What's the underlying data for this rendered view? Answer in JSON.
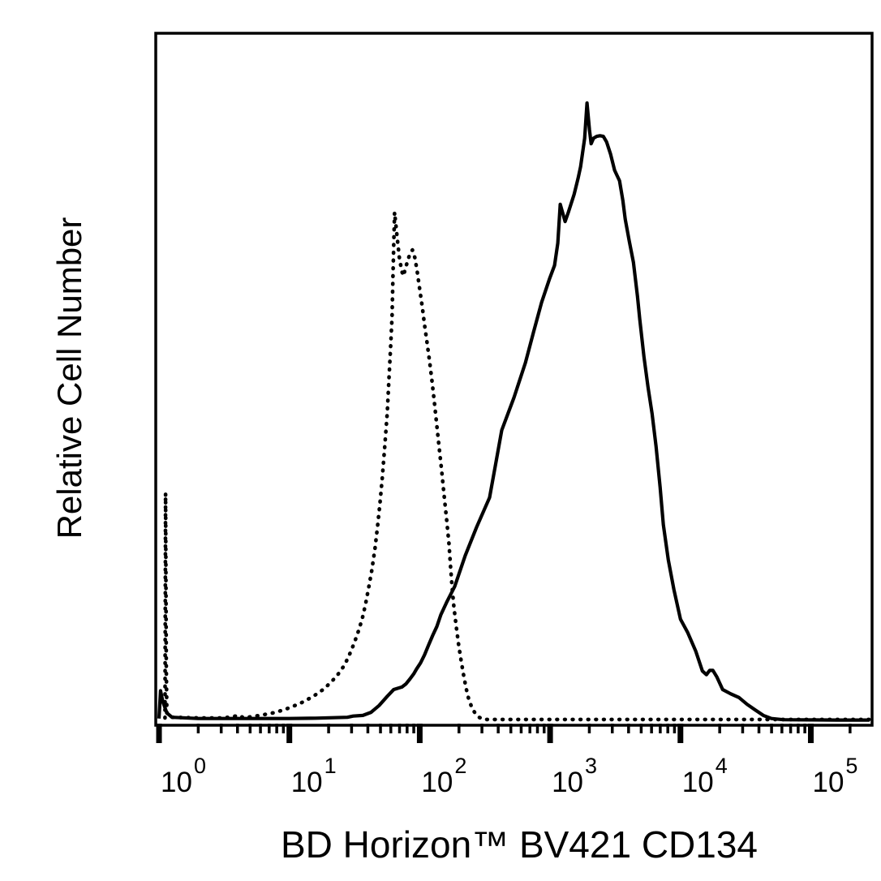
{
  "figure": {
    "background_color": "#ffffff",
    "ink_color": "#000000"
  },
  "chart_data": {
    "type": "line",
    "variant": "flow-cytometry-histogram-overlay",
    "title": "",
    "xlabel": "BD Horizon™ BV421 CD134",
    "ylabel": "Relative Cell Number",
    "grid": false,
    "legend": "none",
    "x_axis": {
      "scale": "log10",
      "tick_base": 10,
      "tick_exponents": [
        0,
        1,
        2,
        3,
        4,
        5
      ],
      "tick_labels": [
        "10⁰",
        "10¹",
        "10²",
        "10³",
        "10⁴",
        "10⁵"
      ],
      "minor_ticks": "log sub-decades (2-9) per decade",
      "range_log10": [
        -0.025,
        5.47
      ]
    },
    "y_axis": {
      "ticks": "none",
      "range_relative": [
        0,
        105
      ]
    },
    "series": [
      {
        "name": "dotted-histogram",
        "line_style": "dotted",
        "color": "#000000",
        "peak_x_approx": 64,
        "peak_height_pct": 82,
        "points_log10x_heightpct": [
          [
            0.046,
            0.4
          ],
          [
            0.05,
            36.8
          ],
          [
            0.056,
            8.0
          ],
          [
            0.06,
            1.2
          ],
          [
            0.1,
            0.5
          ],
          [
            0.3,
            0.4
          ],
          [
            0.5,
            0.4
          ],
          [
            0.62,
            0.8
          ],
          [
            0.648,
            0.4
          ],
          [
            0.71,
            0.6
          ],
          [
            0.773,
            0.8
          ],
          [
            0.897,
            1.3
          ],
          [
            1.009,
            2.1
          ],
          [
            1.097,
            2.9
          ],
          [
            1.184,
            3.9
          ],
          [
            1.259,
            5.0
          ],
          [
            1.321,
            6.2
          ],
          [
            1.371,
            7.4
          ],
          [
            1.421,
            8.9
          ],
          [
            1.458,
            10.5
          ],
          [
            1.495,
            12.4
          ],
          [
            1.526,
            14.2
          ],
          [
            1.558,
            16.4
          ],
          [
            1.583,
            18.7
          ],
          [
            1.607,
            21.3
          ],
          [
            1.632,
            24.3
          ],
          [
            1.657,
            27.9
          ],
          [
            1.676,
            31.3
          ],
          [
            1.695,
            35.2
          ],
          [
            1.713,
            39.4
          ],
          [
            1.732,
            44.4
          ],
          [
            1.751,
            49.9
          ],
          [
            1.763,
            54.9
          ],
          [
            1.776,
            60.2
          ],
          [
            1.788,
            65.4
          ],
          [
            1.794,
            71.4
          ],
          [
            1.801,
            77.3
          ],
          [
            1.807,
            82.3
          ],
          [
            1.825,
            78.6
          ],
          [
            1.844,
            74.9
          ],
          [
            1.863,
            72.7
          ],
          [
            1.876,
            72.0
          ],
          [
            1.888,
            73.1
          ],
          [
            1.907,
            74.4
          ],
          [
            1.925,
            75.6
          ],
          [
            1.944,
            76.2
          ],
          [
            1.963,
            74.9
          ],
          [
            1.981,
            72.7
          ],
          [
            2.0,
            69.8
          ],
          [
            2.019,
            67.0
          ],
          [
            2.037,
            64.1
          ],
          [
            2.056,
            61.2
          ],
          [
            2.075,
            58.2
          ],
          [
            2.093,
            55.2
          ],
          [
            2.112,
            51.6
          ],
          [
            2.131,
            47.7
          ],
          [
            2.15,
            44.0
          ],
          [
            2.168,
            40.5
          ],
          [
            2.187,
            36.5
          ],
          [
            2.206,
            32.6
          ],
          [
            2.224,
            28.7
          ],
          [
            2.237,
            24.7
          ],
          [
            2.249,
            21.4
          ],
          [
            2.262,
            18.4
          ],
          [
            2.28,
            15.2
          ],
          [
            2.299,
            12.2
          ],
          [
            2.318,
            9.6
          ],
          [
            2.336,
            7.4
          ],
          [
            2.355,
            5.3
          ],
          [
            2.374,
            3.6
          ],
          [
            2.399,
            2.1
          ],
          [
            2.424,
            1.2
          ],
          [
            2.455,
            0.5
          ],
          [
            2.492,
            0.15
          ],
          [
            3.0,
            0.15
          ],
          [
            3.5,
            0.15
          ],
          [
            4.0,
            0.15
          ],
          [
            4.5,
            0.15
          ],
          [
            5.0,
            0.15
          ],
          [
            5.45,
            0.15
          ]
        ]
      },
      {
        "name": "solid-histogram",
        "line_style": "solid",
        "color": "#000000",
        "peak_x_approx": 1900,
        "peak_height_pct": 100,
        "points_log10x_heightpct": [
          [
            0.0,
            0.3
          ],
          [
            0.012,
            4.8
          ],
          [
            0.03,
            3.0
          ],
          [
            0.06,
            1.2
          ],
          [
            0.1,
            0.5
          ],
          [
            0.3,
            0.3
          ],
          [
            0.6,
            0.3
          ],
          [
            1.0,
            0.3
          ],
          [
            1.2,
            0.35
          ],
          [
            1.445,
            0.5
          ],
          [
            1.489,
            0.7
          ],
          [
            1.564,
            0.8
          ],
          [
            1.626,
            1.3
          ],
          [
            1.688,
            2.4
          ],
          [
            1.751,
            3.9
          ],
          [
            1.8,
            5.0
          ],
          [
            1.863,
            5.4
          ],
          [
            1.894,
            5.9
          ],
          [
            1.925,
            6.7
          ],
          [
            1.956,
            7.6
          ],
          [
            1.975,
            8.3
          ],
          [
            2.006,
            9.3
          ],
          [
            2.037,
            10.6
          ],
          [
            2.068,
            12.2
          ],
          [
            2.1,
            13.8
          ],
          [
            2.131,
            15.2
          ],
          [
            2.162,
            17.1
          ],
          [
            2.206,
            19.1
          ],
          [
            2.268,
            21.7
          ],
          [
            2.349,
            26.7
          ],
          [
            2.436,
            31.3
          ],
          [
            2.536,
            36.1
          ],
          [
            2.579,
            41.1
          ],
          [
            2.629,
            47.0
          ],
          [
            2.723,
            52.3
          ],
          [
            2.81,
            57.9
          ],
          [
            2.872,
            62.8
          ],
          [
            2.935,
            67.7
          ],
          [
            2.997,
            71.6
          ],
          [
            3.034,
            73.7
          ],
          [
            3.059,
            77.3
          ],
          [
            3.078,
            83.6
          ],
          [
            3.115,
            80.8
          ],
          [
            3.14,
            82.3
          ],
          [
            3.184,
            85.2
          ],
          [
            3.215,
            87.8
          ],
          [
            3.234,
            89.7
          ],
          [
            3.265,
            94.3
          ],
          [
            3.283,
            100.0
          ],
          [
            3.302,
            95.7
          ],
          [
            3.315,
            93.4
          ],
          [
            3.333,
            94.3
          ],
          [
            3.358,
            94.6
          ],
          [
            3.383,
            94.7
          ],
          [
            3.408,
            94.6
          ],
          [
            3.433,
            93.7
          ],
          [
            3.464,
            91.7
          ],
          [
            3.495,
            89.1
          ],
          [
            3.533,
            87.4
          ],
          [
            3.558,
            84.2
          ],
          [
            3.576,
            81.2
          ],
          [
            3.607,
            77.7
          ],
          [
            3.639,
            74.2
          ],
          [
            3.67,
            68.7
          ],
          [
            3.688,
            65.0
          ],
          [
            3.72,
            58.9
          ],
          [
            3.751,
            54.0
          ],
          [
            3.782,
            49.7
          ],
          [
            3.813,
            44.4
          ],
          [
            3.844,
            37.8
          ],
          [
            3.869,
            31.7
          ],
          [
            3.907,
            26.0
          ],
          [
            3.95,
            21.2
          ],
          [
            4.0,
            16.4
          ],
          [
            4.056,
            14.2
          ],
          [
            4.118,
            11.2
          ],
          [
            4.168,
            8.0
          ],
          [
            4.199,
            7.4
          ],
          [
            4.224,
            8.1
          ],
          [
            4.249,
            8.1
          ],
          [
            4.28,
            7.0
          ],
          [
            4.324,
            5.0
          ],
          [
            4.386,
            4.3
          ],
          [
            4.449,
            3.7
          ],
          [
            4.511,
            2.6
          ],
          [
            4.573,
            1.7
          ],
          [
            4.636,
            0.8
          ],
          [
            4.698,
            0.3
          ],
          [
            4.79,
            0.1
          ],
          [
            5.2,
            0.05
          ],
          [
            5.45,
            0.05
          ]
        ]
      }
    ]
  }
}
